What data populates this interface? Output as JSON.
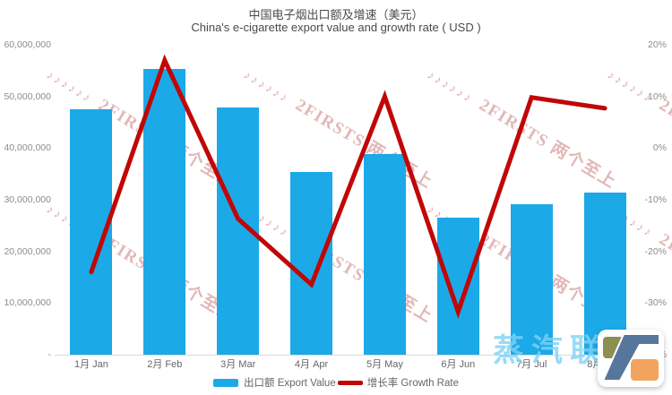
{
  "title": "中国电子烟出口额及增速（美元）",
  "subtitle": "China's e-cigarette export value and growth rate ( USD )",
  "legend": {
    "bar_label": "出口额 Export Value",
    "line_label": "增长率 Growth Rate"
  },
  "axes": {
    "left_ticks": [
      "60,000,000",
      "50,000,000",
      "40,000,000",
      "30,000,000",
      "20,000,000",
      "10,000,000",
      "-"
    ],
    "right_ticks": [
      "20%",
      "10%",
      "0%",
      "-10%",
      "-20%",
      "-30%",
      "-40%"
    ]
  },
  "chart_data": {
    "type": "bar",
    "title": "中国电子烟出口额及增速（美元）",
    "subtitle": "China's e-cigarette export value and growth rate ( USD )",
    "categories": [
      "1月 Jan",
      "2月 Feb",
      "3月 Mar",
      "4月 Apr",
      "5月 May",
      "6月 Jun",
      "7月 Jul",
      "8月 Aug"
    ],
    "series": [
      {
        "name": "出口额 Export Value",
        "type": "bar",
        "axis": "left",
        "values": [
          47500000,
          55400000,
          47900000,
          35300000,
          38800000,
          26500000,
          29100000,
          31400000
        ]
      },
      {
        "name": "增长率 Growth Rate",
        "type": "line",
        "axis": "right",
        "values": [
          -24,
          17,
          -13.7,
          -26.4,
          10,
          -31.7,
          9.8,
          7.7
        ]
      }
    ],
    "left_axis": {
      "range": [
        0,
        60000000
      ],
      "tick_step": 10000000
    },
    "right_axis": {
      "range": [
        -40,
        20
      ],
      "tick_step": 10,
      "unit": "%"
    },
    "grid": false,
    "legend_position": "bottom"
  },
  "watermark": {
    "notes": "♪♪♪♪♪♪",
    "brand": "2FIRSTS 两个至上",
    "bottom_text": "蒸汽联"
  },
  "colors": {
    "bar": "#1BA9E8",
    "line": "#C10606",
    "title_text": "#4A4A4A",
    "axis_text": "#8C8C8C",
    "axis_line": "#D9D9D9",
    "watermark_pink": "#DCA6A6",
    "watermark_blue": "#7DD2F5",
    "logo_olive": "#8C8F52",
    "logo_slate": "#56779B",
    "logo_orange": "#F2A45F"
  }
}
